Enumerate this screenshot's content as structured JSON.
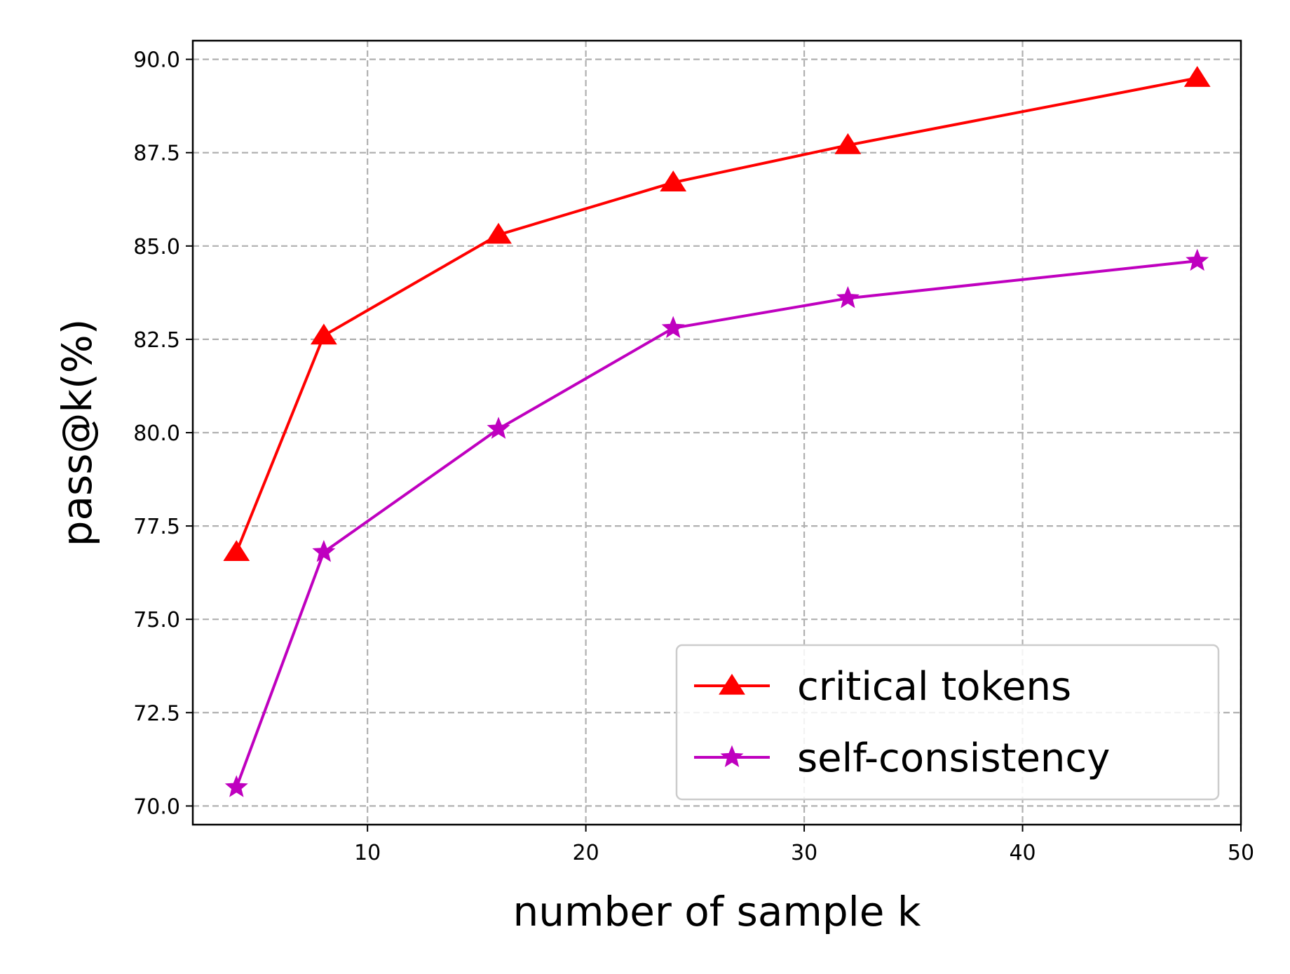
{
  "chart_data": {
    "type": "line",
    "title": "",
    "xlabel": "number of sample k",
    "ylabel": "pass@k(%)",
    "xlim": [
      2,
      50
    ],
    "ylim": [
      69.5,
      90.5
    ],
    "xticks": [
      10,
      20,
      30,
      40,
      50
    ],
    "yticks": [
      "70.0",
      "72.5",
      "75.0",
      "77.5",
      "80.0",
      "82.5",
      "85.0",
      "87.5",
      "90.0"
    ],
    "grid": true,
    "legend_position": "bottom-right",
    "x": [
      4,
      8,
      16,
      24,
      32,
      48
    ],
    "series": [
      {
        "name": "critical tokens",
        "color": "#ff0000",
        "marker": "triangle",
        "values": [
          76.8,
          82.6,
          85.3,
          86.7,
          87.7,
          89.5
        ]
      },
      {
        "name": "self-consistency",
        "color": "#bf00bf",
        "marker": "star",
        "values": [
          70.5,
          76.8,
          80.1,
          82.8,
          83.6,
          84.6
        ]
      }
    ]
  }
}
